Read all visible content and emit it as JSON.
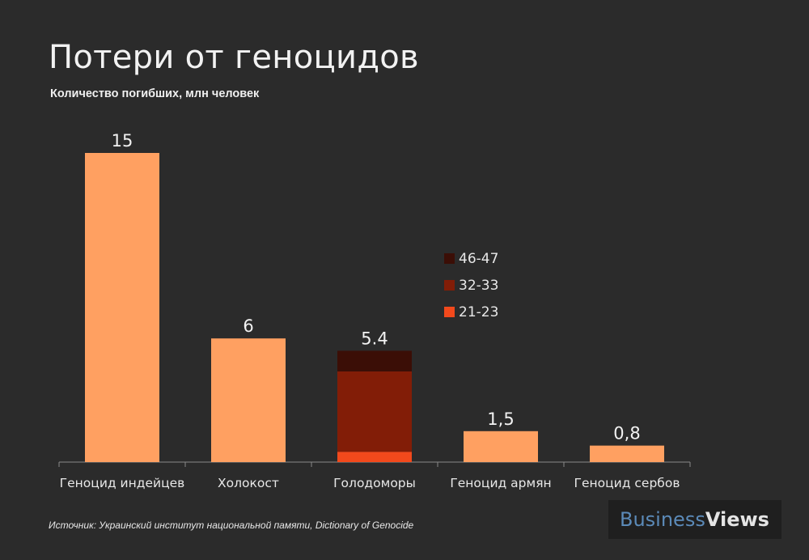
{
  "chart_data": {
    "type": "bar",
    "title": "Потери от геноцидов",
    "subtitle": "Количество погибших, млн человек",
    "categories": [
      "Геноцид индейцев",
      "Холокост",
      "Голодоморы",
      "Геноцид армян",
      "Геноцид сербов"
    ],
    "value_labels": [
      "15",
      "6",
      "5.4",
      "1,5",
      "0,8"
    ],
    "values": [
      15,
      6,
      5.4,
      1.5,
      0.8
    ],
    "bar_color": "#ffa061",
    "stacked_bar": {
      "category": "Голодоморы",
      "segments": [
        {
          "name": "21-23",
          "value": 0.5,
          "color": "#f2491c"
        },
        {
          "name": "32-33",
          "value": 3.9,
          "color": "#821d07"
        },
        {
          "name": "46-47",
          "value": 1.0,
          "color": "#3b0e06"
        }
      ]
    },
    "legend": {
      "placement": "above-right-of-third-bar",
      "entries": [
        {
          "label": "46-47",
          "color": "#3b0e06"
        },
        {
          "label": "32-33",
          "color": "#821d07"
        },
        {
          "label": "21-23",
          "color": "#f2491c"
        }
      ]
    },
    "ylim": [
      0,
      15
    ],
    "grid": false
  },
  "source": "Источник:  Украинский институт национальной памяти, Dictionary of Genocide",
  "logo": {
    "part1": "Business",
    "part2": "Views"
  },
  "colors": {
    "background": "#2b2b2b",
    "text": "#f2f2f2",
    "axis": "#8a8a8a"
  }
}
